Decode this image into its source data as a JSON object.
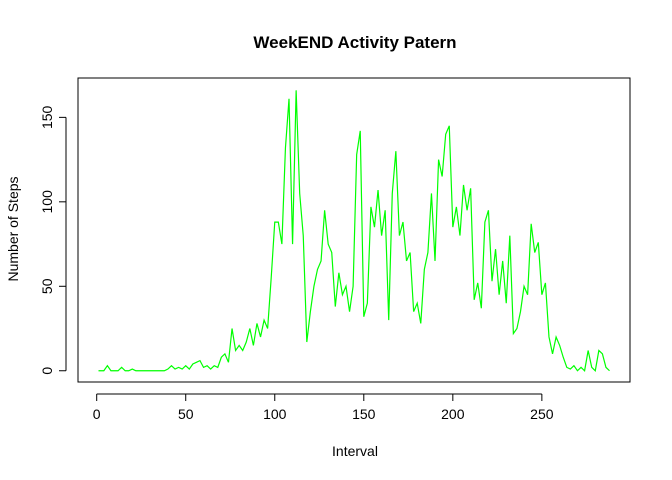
{
  "chart_data": {
    "type": "line",
    "title": "WeekEND Activity Patern",
    "xlabel": "Interval",
    "ylabel": "Number of Steps",
    "color": "#00ff00",
    "x": [
      1,
      2,
      4,
      6,
      8,
      10,
      12,
      14,
      16,
      18,
      20,
      22,
      24,
      26,
      28,
      30,
      32,
      34,
      36,
      38,
      40,
      42,
      44,
      46,
      48,
      50,
      52,
      54,
      56,
      58,
      60,
      62,
      64,
      66,
      68,
      70,
      72,
      74,
      76,
      78,
      80,
      82,
      84,
      86,
      88,
      90,
      92,
      94,
      96,
      98,
      100,
      102,
      104,
      106,
      108,
      110,
      112,
      114,
      116,
      118,
      120,
      122,
      124,
      126,
      128,
      130,
      132,
      134,
      136,
      138,
      140,
      142,
      144,
      146,
      148,
      150,
      152,
      154,
      156,
      158,
      160,
      162,
      164,
      166,
      168,
      170,
      172,
      174,
      176,
      178,
      180,
      182,
      184,
      186,
      188,
      190,
      192,
      194,
      196,
      198,
      200,
      202,
      204,
      206,
      208,
      210,
      212,
      214,
      216,
      218,
      220,
      222,
      224,
      226,
      228,
      230,
      232,
      234,
      236,
      238,
      240,
      242,
      244,
      246,
      248,
      250,
      252,
      254,
      256,
      258,
      260,
      262,
      264,
      266,
      268,
      270,
      272,
      274,
      276,
      278,
      280,
      282,
      284,
      286,
      288
    ],
    "values": [
      0,
      0,
      0,
      3,
      0,
      0,
      0,
      2,
      0,
      0,
      1,
      0,
      0,
      0,
      0,
      0,
      0,
      0,
      0,
      0,
      1,
      3,
      1,
      2,
      1,
      3,
      1,
      4,
      5,
      6,
      2,
      3,
      1,
      3,
      2,
      8,
      10,
      5,
      25,
      12,
      15,
      12,
      17,
      25,
      15,
      28,
      20,
      30,
      25,
      55,
      88,
      88,
      75,
      132,
      161,
      75,
      166,
      105,
      80,
      17,
      35,
      50,
      60,
      65,
      95,
      75,
      70,
      38,
      58,
      45,
      50,
      35,
      50,
      128,
      142,
      32,
      40,
      97,
      85,
      107,
      80,
      95,
      30,
      105,
      130,
      80,
      88,
      65,
      70,
      35,
      40,
      28,
      60,
      70,
      105,
      65,
      125,
      115,
      140,
      145,
      85,
      97,
      80,
      110,
      95,
      108,
      42,
      52,
      37,
      88,
      95,
      53,
      72,
      45,
      65,
      40,
      80,
      22,
      25,
      35,
      50,
      45,
      87,
      70,
      76,
      45,
      52,
      20,
      10,
      20,
      15,
      8,
      2,
      1,
      3,
      0,
      2,
      0,
      12,
      2,
      0,
      12,
      10,
      2,
      0
    ],
    "xlim": [
      -10.5,
      299.5
    ],
    "ylim": [
      -6.66,
      173.3
    ],
    "xticks": [
      0,
      50,
      100,
      150,
      200,
      250
    ],
    "yticks": [
      0,
      50,
      100,
      150
    ]
  }
}
